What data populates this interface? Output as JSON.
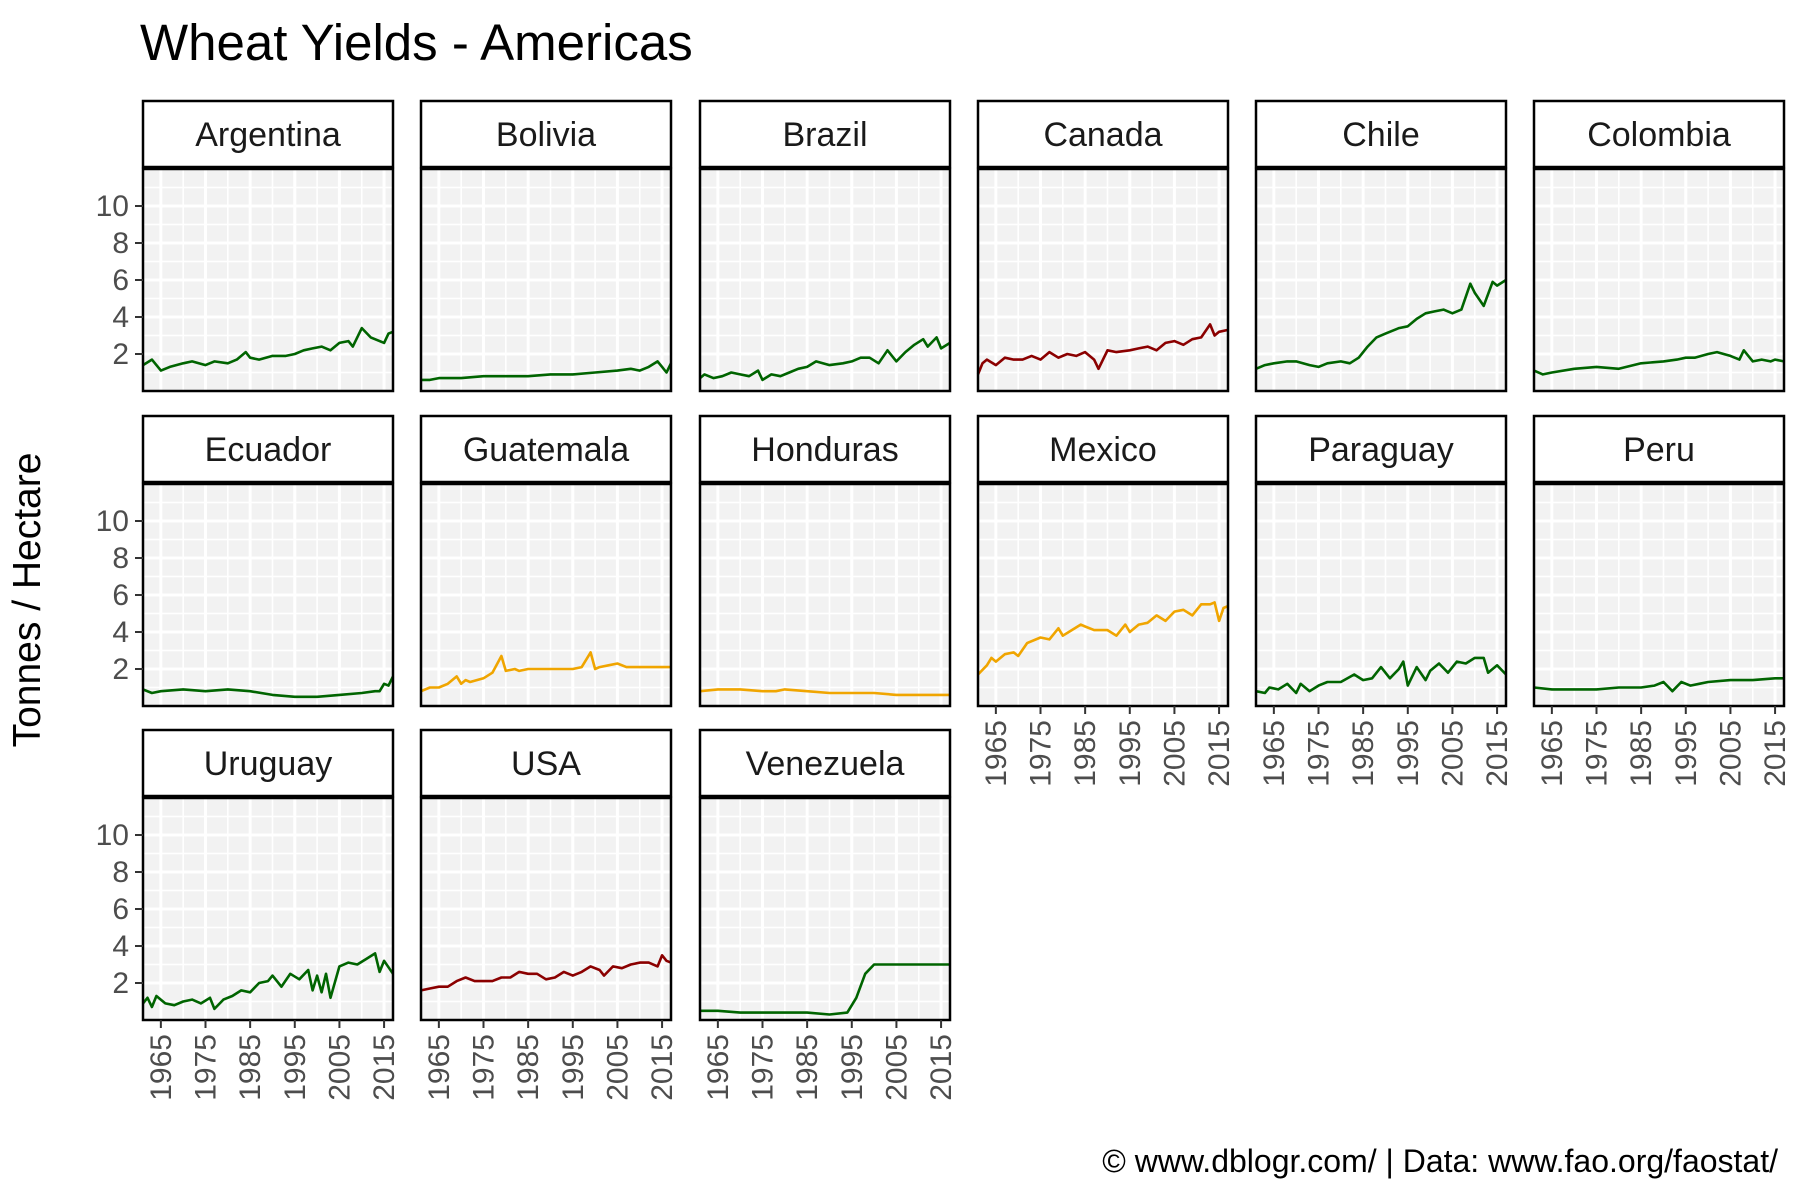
{
  "chart_data": {
    "type": "line",
    "title": "Wheat Yields - Americas",
    "ylabel": "Tonnes / Hectare",
    "xlabel": "",
    "caption": "© www.dblogr.com/  |  Data: www.fao.org/faostat/",
    "xlim": [
      1961,
      2017
    ],
    "ylim": [
      0,
      12
    ],
    "x_ticks": [
      "1965",
      "1975",
      "1985",
      "1995",
      "2005",
      "2015"
    ],
    "y_ticks": [
      "2",
      "4",
      "6",
      "8",
      "10"
    ],
    "grid": true,
    "legend": "none",
    "colors": {
      "green": "#006400",
      "red": "#8b0000",
      "gold": "#f0a500"
    },
    "panels": [
      {
        "name": "Argentina",
        "color": "#006400",
        "x": [
          1961,
          1963,
          1965,
          1967,
          1970,
          1972,
          1975,
          1977,
          1980,
          1982,
          1984,
          1985,
          1987,
          1990,
          1993,
          1995,
          1997,
          1999,
          2001,
          2003,
          2005,
          2007,
          2008,
          2010,
          2012,
          2014,
          2015,
          2016,
          2017
        ],
        "values": [
          1.4,
          1.7,
          1.1,
          1.3,
          1.5,
          1.6,
          1.4,
          1.6,
          1.5,
          1.7,
          2.1,
          1.8,
          1.7,
          1.9,
          1.9,
          2.0,
          2.2,
          2.3,
          2.4,
          2.2,
          2.6,
          2.7,
          2.4,
          3.4,
          2.9,
          2.7,
          2.6,
          3.1,
          3.2
        ]
      },
      {
        "name": "Bolivia",
        "color": "#006400",
        "x": [
          1961,
          1963,
          1965,
          1970,
          1975,
          1980,
          1985,
          1990,
          1995,
          2000,
          2005,
          2008,
          2010,
          2012,
          2014,
          2015,
          2016,
          2017
        ],
        "values": [
          0.6,
          0.6,
          0.7,
          0.7,
          0.8,
          0.8,
          0.8,
          0.9,
          0.9,
          1.0,
          1.1,
          1.2,
          1.1,
          1.3,
          1.6,
          1.3,
          1.0,
          1.5
        ]
      },
      {
        "name": "Brazil",
        "color": "#006400",
        "x": [
          1961,
          1962,
          1964,
          1966,
          1968,
          1970,
          1972,
          1974,
          1975,
          1977,
          1979,
          1981,
          1983,
          1985,
          1987,
          1990,
          1993,
          1995,
          1997,
          1999,
          2001,
          2003,
          2005,
          2007,
          2009,
          2011,
          2012,
          2014,
          2015,
          2017
        ],
        "values": [
          0.7,
          0.9,
          0.7,
          0.8,
          1.0,
          0.9,
          0.8,
          1.1,
          0.6,
          0.9,
          0.8,
          1.0,
          1.2,
          1.3,
          1.6,
          1.4,
          1.5,
          1.6,
          1.8,
          1.8,
          1.5,
          2.2,
          1.6,
          2.1,
          2.5,
          2.8,
          2.4,
          2.9,
          2.3,
          2.6
        ]
      },
      {
        "name": "Canada",
        "color": "#8b0000",
        "x": [
          1961,
          1962,
          1963,
          1965,
          1967,
          1969,
          1971,
          1973,
          1975,
          1977,
          1979,
          1981,
          1983,
          1985,
          1987,
          1988,
          1990,
          1992,
          1995,
          1997,
          1999,
          2001,
          2003,
          2005,
          2007,
          2009,
          2011,
          2013,
          2014,
          2015,
          2017
        ],
        "values": [
          0.9,
          1.5,
          1.7,
          1.4,
          1.8,
          1.7,
          1.7,
          1.9,
          1.7,
          2.1,
          1.8,
          2.0,
          1.9,
          2.1,
          1.7,
          1.2,
          2.2,
          2.1,
          2.2,
          2.3,
          2.4,
          2.2,
          2.6,
          2.7,
          2.5,
          2.8,
          2.9,
          3.6,
          3.0,
          3.2,
          3.3
        ]
      },
      {
        "name": "Chile",
        "color": "#006400",
        "x": [
          1961,
          1963,
          1965,
          1968,
          1970,
          1973,
          1975,
          1977,
          1980,
          1982,
          1984,
          1986,
          1988,
          1990,
          1993,
          1995,
          1997,
          1999,
          2001,
          2003,
          2005,
          2007,
          2009,
          2010,
          2012,
          2014,
          2015,
          2017
        ],
        "values": [
          1.2,
          1.4,
          1.5,
          1.6,
          1.6,
          1.4,
          1.3,
          1.5,
          1.6,
          1.5,
          1.8,
          2.4,
          2.9,
          3.1,
          3.4,
          3.5,
          3.9,
          4.2,
          4.3,
          4.4,
          4.2,
          4.4,
          5.8,
          5.3,
          4.6,
          5.9,
          5.7,
          6.0
        ]
      },
      {
        "name": "Colombia",
        "color": "#006400",
        "x": [
          1961,
          1963,
          1965,
          1970,
          1975,
          1980,
          1985,
          1990,
          1993,
          1995,
          1997,
          2000,
          2002,
          2005,
          2007,
          2008,
          2010,
          2012,
          2014,
          2015,
          2017
        ],
        "values": [
          1.1,
          0.9,
          1.0,
          1.2,
          1.3,
          1.2,
          1.5,
          1.6,
          1.7,
          1.8,
          1.8,
          2.0,
          2.1,
          1.9,
          1.7,
          2.2,
          1.6,
          1.7,
          1.6,
          1.7,
          1.6
        ]
      },
      {
        "name": "Ecuador",
        "color": "#006400",
        "x": [
          1961,
          1963,
          1965,
          1970,
          1975,
          1980,
          1985,
          1990,
          1995,
          2000,
          2005,
          2010,
          2013,
          2014,
          2015,
          2016,
          2017
        ],
        "values": [
          0.9,
          0.7,
          0.8,
          0.9,
          0.8,
          0.9,
          0.8,
          0.6,
          0.5,
          0.5,
          0.6,
          0.7,
          0.8,
          0.8,
          1.2,
          1.1,
          1.6
        ]
      },
      {
        "name": "Guatemala",
        "color": "#f0a500",
        "x": [
          1961,
          1963,
          1965,
          1967,
          1969,
          1970,
          1971,
          1972,
          1975,
          1977,
          1979,
          1980,
          1982,
          1983,
          1985,
          1990,
          1995,
          1997,
          1999,
          2000,
          2001,
          2003,
          2005,
          2007,
          2010,
          2013,
          2017
        ],
        "values": [
          0.8,
          1.0,
          1.0,
          1.2,
          1.6,
          1.2,
          1.4,
          1.3,
          1.5,
          1.8,
          2.7,
          1.9,
          2.0,
          1.9,
          2.0,
          2.0,
          2.0,
          2.1,
          2.9,
          2.0,
          2.1,
          2.2,
          2.3,
          2.1,
          2.1,
          2.1,
          2.1
        ]
      },
      {
        "name": "Honduras",
        "color": "#f0a500",
        "x": [
          1961,
          1965,
          1970,
          1975,
          1978,
          1980,
          1985,
          1990,
          1995,
          2000,
          2005,
          2010,
          2015,
          2017
        ],
        "values": [
          0.8,
          0.9,
          0.9,
          0.8,
          0.8,
          0.9,
          0.8,
          0.7,
          0.7,
          0.7,
          0.6,
          0.6,
          0.6,
          0.6
        ]
      },
      {
        "name": "Mexico",
        "color": "#f0a500",
        "x": [
          1961,
          1963,
          1964,
          1965,
          1967,
          1969,
          1970,
          1972,
          1975,
          1977,
          1979,
          1980,
          1982,
          1984,
          1985,
          1987,
          1990,
          1992,
          1994,
          1995,
          1997,
          1999,
          2001,
          2003,
          2005,
          2007,
          2009,
          2011,
          2013,
          2014,
          2015,
          2016,
          2017
        ],
        "values": [
          1.7,
          2.2,
          2.6,
          2.4,
          2.8,
          2.9,
          2.7,
          3.4,
          3.7,
          3.6,
          4.2,
          3.8,
          4.1,
          4.4,
          4.3,
          4.1,
          4.1,
          3.8,
          4.4,
          4.0,
          4.4,
          4.5,
          4.9,
          4.6,
          5.1,
          5.2,
          4.9,
          5.5,
          5.5,
          5.6,
          4.6,
          5.3,
          5.4
        ]
      },
      {
        "name": "Paraguay",
        "color": "#006400",
        "x": [
          1961,
          1963,
          1964,
          1966,
          1968,
          1970,
          1971,
          1973,
          1975,
          1977,
          1980,
          1983,
          1985,
          1987,
          1989,
          1991,
          1993,
          1994,
          1995,
          1997,
          1999,
          2000,
          2002,
          2004,
          2006,
          2008,
          2010,
          2012,
          2013,
          2015,
          2017
        ],
        "values": [
          0.8,
          0.7,
          1.0,
          0.9,
          1.2,
          0.7,
          1.2,
          0.8,
          1.1,
          1.3,
          1.3,
          1.7,
          1.4,
          1.5,
          2.1,
          1.5,
          2.0,
          2.4,
          1.1,
          2.1,
          1.4,
          1.9,
          2.3,
          1.8,
          2.4,
          2.3,
          2.6,
          2.6,
          1.8,
          2.2,
          1.7
        ]
      },
      {
        "name": "Peru",
        "color": "#006400",
        "x": [
          1961,
          1965,
          1970,
          1975,
          1980,
          1985,
          1988,
          1990,
          1992,
          1994,
          1996,
          1998,
          2000,
          2005,
          2010,
          2015,
          2017
        ],
        "values": [
          1.0,
          0.9,
          0.9,
          0.9,
          1.0,
          1.0,
          1.1,
          1.3,
          0.8,
          1.3,
          1.1,
          1.2,
          1.3,
          1.4,
          1.4,
          1.5,
          1.5
        ]
      },
      {
        "name": "Uruguay",
        "color": "#006400",
        "x": [
          1961,
          1962,
          1963,
          1964,
          1966,
          1968,
          1970,
          1972,
          1974,
          1976,
          1977,
          1979,
          1981,
          1983,
          1985,
          1987,
          1989,
          1990,
          1992,
          1994,
          1996,
          1998,
          1999,
          2000,
          2001,
          2002,
          2003,
          2005,
          2007,
          2009,
          2011,
          2013,
          2014,
          2015,
          2017
        ],
        "values": [
          0.9,
          1.2,
          0.7,
          1.3,
          0.9,
          0.8,
          1.0,
          1.1,
          0.9,
          1.2,
          0.6,
          1.1,
          1.3,
          1.6,
          1.5,
          2.0,
          2.1,
          2.4,
          1.8,
          2.5,
          2.2,
          2.7,
          1.6,
          2.4,
          1.5,
          2.5,
          1.2,
          2.9,
          3.1,
          3.0,
          3.3,
          3.6,
          2.6,
          3.2,
          2.5
        ]
      },
      {
        "name": "USA",
        "color": "#8b0000",
        "x": [
          1961,
          1963,
          1965,
          1967,
          1969,
          1971,
          1973,
          1975,
          1977,
          1979,
          1981,
          1983,
          1985,
          1987,
          1989,
          1991,
          1993,
          1995,
          1997,
          1999,
          2001,
          2002,
          2004,
          2006,
          2008,
          2010,
          2012,
          2014,
          2015,
          2016,
          2017
        ],
        "values": [
          1.6,
          1.7,
          1.8,
          1.8,
          2.1,
          2.3,
          2.1,
          2.1,
          2.1,
          2.3,
          2.3,
          2.6,
          2.5,
          2.5,
          2.2,
          2.3,
          2.6,
          2.4,
          2.6,
          2.9,
          2.7,
          2.4,
          2.9,
          2.8,
          3.0,
          3.1,
          3.1,
          2.9,
          3.5,
          3.2,
          3.1
        ]
      },
      {
        "name": "Venezuela",
        "color": "#006400",
        "x": [
          1961,
          1965,
          1970,
          1975,
          1980,
          1985,
          1990,
          1994,
          1996,
          1998,
          2000,
          2002,
          2005,
          2010,
          2015,
          2017
        ],
        "values": [
          0.5,
          0.5,
          0.4,
          0.4,
          0.4,
          0.4,
          0.3,
          0.4,
          1.2,
          2.5,
          3.0,
          3.0,
          3.0,
          3.0,
          3.0,
          3.0
        ]
      }
    ]
  }
}
